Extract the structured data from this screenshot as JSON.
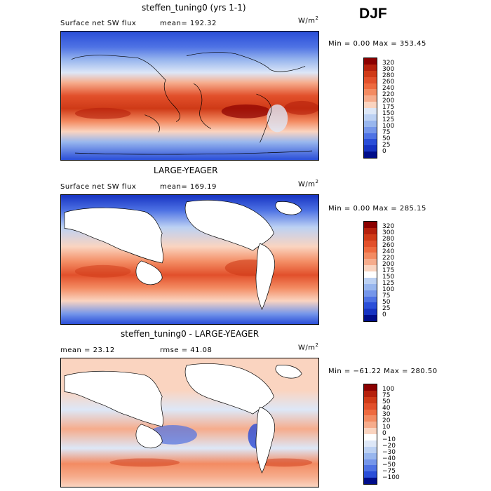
{
  "season": "DJF",
  "units_base": "W/m",
  "units_exp": "2",
  "panels": [
    {
      "title": "steffen_tuning0 (yrs 1-1)",
      "left_label": "Surface net SW flux",
      "stat_label": "mean= 192.32",
      "minmax": "Min =    0.00 Max = 353.45",
      "ticks": [
        "320",
        "300",
        "280",
        "260",
        "240",
        "220",
        "200",
        "175",
        "150",
        "125",
        "100",
        "75",
        "50",
        "25",
        "0"
      ],
      "colors": [
        "#8b0000",
        "#b5200c",
        "#cf3a17",
        "#e2502b",
        "#ee6a3f",
        "#f38b62",
        "#f6ac8c",
        "#fad4c0",
        "#dde7f7",
        "#bcd1f3",
        "#98b6ee",
        "#7596ea",
        "#4e72e4",
        "#2a4ed8",
        "#1633c2",
        "#000d8a"
      ]
    },
    {
      "title": "LARGE-YEAGER",
      "left_label": "Surface net SW flux",
      "stat_label": "mean= 169.19",
      "minmax": "Min =    0.00 Max = 285.15",
      "ticks": [
        "320",
        "300",
        "280",
        "260",
        "240",
        "220",
        "200",
        "175",
        "150",
        "125",
        "100",
        "75",
        "50",
        "25",
        "0"
      ],
      "colors": [
        "#8b0000",
        "#b5200c",
        "#cf3a17",
        "#e2502b",
        "#ee6a3f",
        "#f38b62",
        "#f6ac8c",
        "#fad4c0",
        "#ffffff",
        "#bcd1f3",
        "#98b6ee",
        "#7596ea",
        "#4e72e4",
        "#2a4ed8",
        "#1633c2",
        "#000d8a"
      ]
    },
    {
      "title": "steffen_tuning0 - LARGE-YEAGER",
      "left_label": "mean =  23.12",
      "stat_label": "rmse =  41.08",
      "minmax": "Min = −61.22 Max = 280.50",
      "ticks": [
        "100",
        "75",
        "50",
        "40",
        "30",
        "20",
        "10",
        "0",
        "−10",
        "−20",
        "−30",
        "−40",
        "−50",
        "−75",
        "−100"
      ],
      "colors": [
        "#8b0000",
        "#b5200c",
        "#cf3a17",
        "#e2502b",
        "#ee6a3f",
        "#f38b62",
        "#f6ac8c",
        "#fad4c0",
        "#ffffff",
        "#dde7f7",
        "#bcd1f3",
        "#98b6ee",
        "#7596ea",
        "#4e72e4",
        "#2a4ed8",
        "#000d8a"
      ]
    }
  ]
}
